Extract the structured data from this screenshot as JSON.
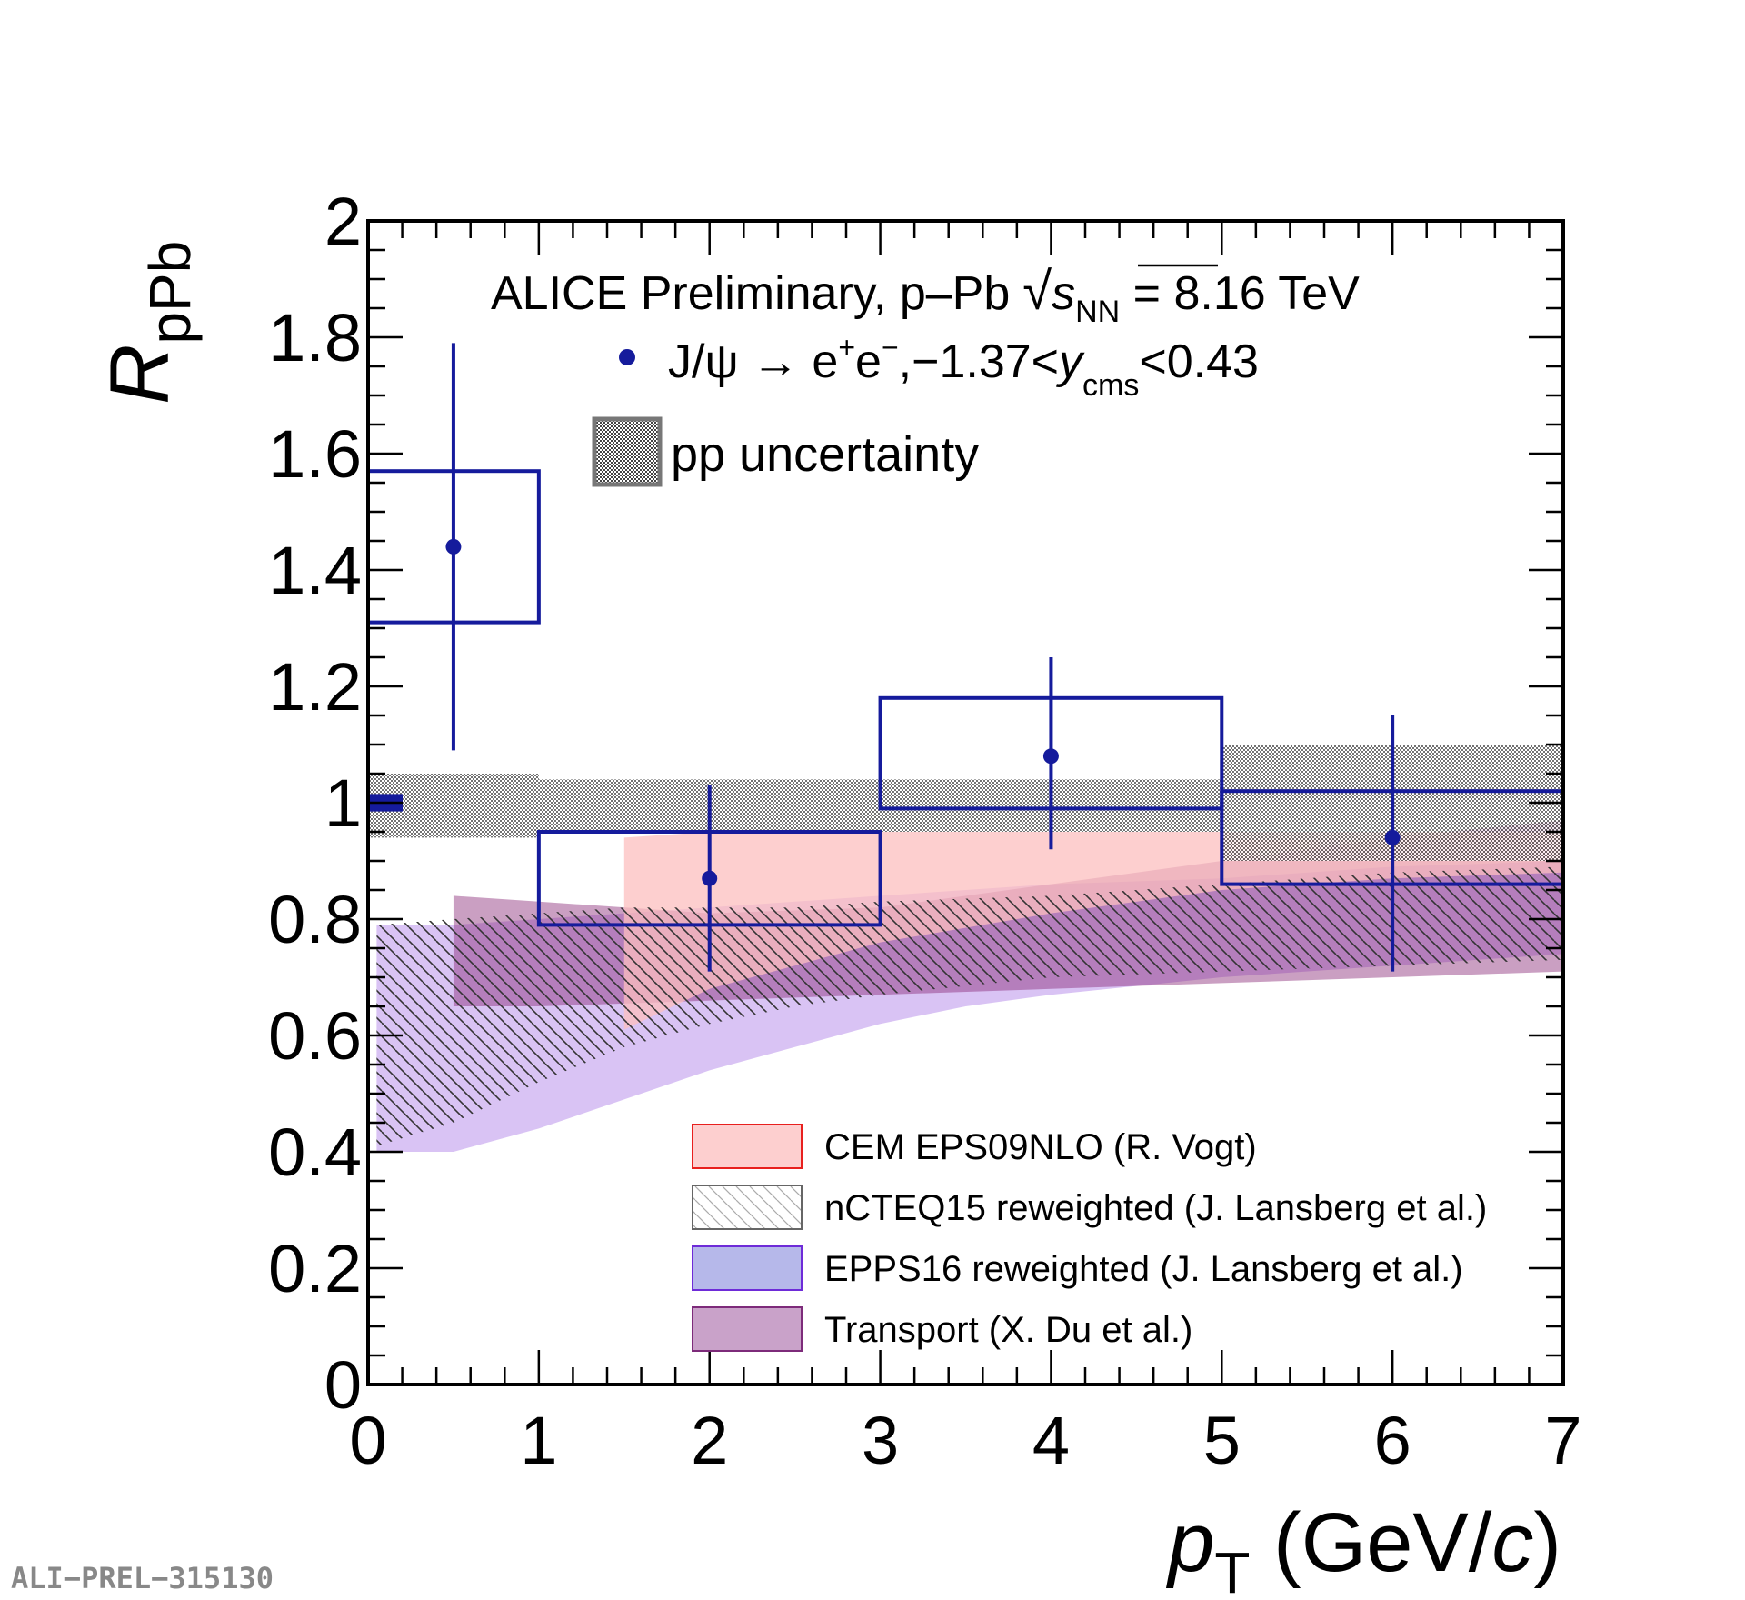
{
  "chart_data": {
    "type": "scatter",
    "title": "ALICE Preliminary, p–Pb",
    "energy_prefix": "√",
    "energy_s": "s",
    "energy_sub": "NN",
    "energy_value": " = 8.16 TeV",
    "xlabel": "p",
    "xlabel_sub": "T",
    "xlabel_unit_open": " (GeV/",
    "xlabel_unit_c": "c",
    "xlabel_unit_close": ")",
    "ylabel": "R",
    "ylabel_sub": "pPb",
    "xlim": [
      0,
      7
    ],
    "ylim": [
      0,
      2
    ],
    "x_ticks": [
      "0",
      "1",
      "2",
      "3",
      "4",
      "5",
      "6",
      "7"
    ],
    "y_ticks": [
      "0",
      "0.2",
      "0.4",
      "0.6",
      "0.8",
      "1",
      "1.2",
      "1.4",
      "1.6",
      "1.8",
      "2"
    ],
    "series_label": {
      "part1": "J/ψ → e",
      "sup1": "+",
      "part2": "e",
      "sup2": "−",
      "part3": ",−1.37<",
      "yvar": "y",
      "ysub": "cms",
      "part4": "<0.43"
    },
    "pp_uncertainty_label": "pp uncertainty",
    "data_points": [
      {
        "x": 0.5,
        "y": 1.44,
        "stat_low": 1.09,
        "stat_high": 1.79,
        "syst_low": 1.31,
        "syst_high": 1.57,
        "xlow": 0,
        "xhigh": 1
      },
      {
        "x": 2,
        "y": 0.87,
        "stat_low": 0.71,
        "stat_high": 1.03,
        "syst_low": 0.79,
        "syst_high": 0.95,
        "xlow": 1,
        "xhigh": 3
      },
      {
        "x": 4,
        "y": 1.08,
        "stat_low": 0.92,
        "stat_high": 1.25,
        "syst_low": 0.99,
        "syst_high": 1.18,
        "xlow": 3,
        "xhigh": 5
      },
      {
        "x": 6,
        "y": 0.94,
        "stat_low": 0.71,
        "stat_high": 1.15,
        "syst_low": 0.86,
        "syst_high": 1.02,
        "xlow": 5,
        "xhigh": 7
      }
    ],
    "global_uncertainty": {
      "low": 0.985,
      "high": 1.015
    },
    "pp_uncertainty_bands": [
      {
        "xlow": 0,
        "xhigh": 1,
        "low": 0.94,
        "high": 1.05
      },
      {
        "xlow": 1,
        "xhigh": 5,
        "low": 0.95,
        "high": 1.04
      },
      {
        "xlow": 5,
        "xhigh": 7,
        "low": 0.9,
        "high": 1.1
      }
    ],
    "models": [
      {
        "name": "CEM EPS09NLO (R. Vogt)",
        "style": "fill",
        "fill": "#fcbfbf",
        "stroke": "#e8201e",
        "x": [
          1.5,
          2,
          3,
          4,
          5,
          6,
          7
        ],
        "low": [
          0.61,
          0.68,
          0.76,
          0.81,
          0.85,
          0.87,
          0.88
        ],
        "high": [
          0.94,
          0.95,
          0.95,
          0.95,
          0.95,
          0.95,
          0.95
        ]
      },
      {
        "name": "nCTEQ15 reweighted (J. Lansberg et al.)",
        "style": "hatch",
        "fill": "#333333",
        "stroke": "#666666",
        "x": [
          0.05,
          0.5,
          1,
          1.5,
          2,
          2.5,
          3,
          4,
          5,
          6,
          7
        ],
        "low": [
          0.41,
          0.45,
          0.52,
          0.58,
          0.62,
          0.65,
          0.67,
          0.7,
          0.71,
          0.72,
          0.73
        ],
        "high": [
          0.79,
          0.8,
          0.81,
          0.82,
          0.82,
          0.82,
          0.83,
          0.84,
          0.86,
          0.88,
          0.89
        ]
      },
      {
        "name": "EPPS16 reweighted (J. Lansberg et al.)",
        "style": "fill",
        "fill": "#7d3ddf",
        "stroke": "#6e2bd8",
        "x": [
          0.05,
          0.5,
          1,
          1.5,
          2,
          2.5,
          3,
          3.5,
          4,
          5,
          6,
          7
        ],
        "low": [
          0.4,
          0.4,
          0.44,
          0.49,
          0.54,
          0.58,
          0.62,
          0.65,
          0.67,
          0.7,
          0.72,
          0.74
        ],
        "high": [
          0.79,
          0.79,
          0.8,
          0.81,
          0.82,
          0.83,
          0.84,
          0.85,
          0.86,
          0.87,
          0.89,
          0.9
        ]
      },
      {
        "name": "Transport (X. Du et al.)",
        "style": "fill",
        "fill": "#8a1f72",
        "stroke": "#7d2b7a",
        "x": [
          0.5,
          1,
          2,
          3,
          4,
          5,
          6,
          7
        ],
        "low": [
          0.65,
          0.65,
          0.66,
          0.67,
          0.68,
          0.69,
          0.7,
          0.71
        ],
        "high": [
          0.84,
          0.83,
          0.81,
          0.82,
          0.86,
          0.9,
          0.94,
          0.97
        ]
      }
    ],
    "legend_position": "bottom-right",
    "footer": "ALI−PREL−315130"
  }
}
